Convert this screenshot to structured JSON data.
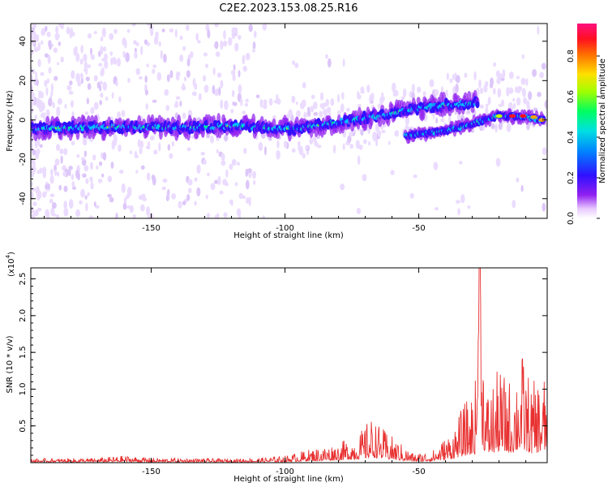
{
  "title": "C2E2.2023.153.08.25.R16",
  "chart_data": [
    {
      "type": "heatmap",
      "xlabel": "Height of straight line (km)",
      "ylabel": "Frequency (Hz)",
      "xlim": [
        -195,
        -2
      ],
      "ylim": [
        -50,
        49
      ],
      "xticks": [
        -150,
        -100,
        -50
      ],
      "yticks": [
        -40,
        -20,
        0,
        20,
        40
      ],
      "colorbar": {
        "label": "Normalized spectral amplitude",
        "range": [
          0.0,
          0.96
        ],
        "ticks": [
          "0.0",
          "0.2",
          "0.4",
          "0.6",
          "0.8"
        ]
      },
      "ridge": [
        {
          "x": -195,
          "y": -4.5
        },
        {
          "x": -180,
          "y": -4
        },
        {
          "x": -160,
          "y": -3.5
        },
        {
          "x": -140,
          "y": -4
        },
        {
          "x": -120,
          "y": -3
        },
        {
          "x": -105,
          "y": -4
        },
        {
          "x": -95,
          "y": -4.5
        },
        {
          "x": -85,
          "y": -2
        },
        {
          "x": -75,
          "y": 0
        },
        {
          "x": -65,
          "y": 2
        },
        {
          "x": -55,
          "y": 5
        },
        {
          "x": -45,
          "y": 7
        },
        {
          "x": -35,
          "y": 8
        },
        {
          "x": -28,
          "y": 9
        }
      ],
      "branch": [
        {
          "x": -55,
          "y": -8
        },
        {
          "x": -45,
          "y": -6.5
        },
        {
          "x": -35,
          "y": -4
        },
        {
          "x": -28,
          "y": -1
        },
        {
          "x": -20,
          "y": 2
        },
        {
          "x": -10,
          "y": 1.5
        },
        {
          "x": -3,
          "y": 0
        }
      ],
      "colors": [
        "#9020f0",
        "#3010ff",
        "#00c0ff",
        "#00ff80",
        "#c0ff00",
        "#ffa000",
        "#ff1020"
      ]
    },
    {
      "type": "line",
      "xlabel": "Height of straight line (km)",
      "ylabel": "SNR (10 * v/v)",
      "multiplier_label": "(x10",
      "multiplier_exp": "4",
      "multiplier_close": ")",
      "xlim": [
        -195,
        -2
      ],
      "ylim": [
        0,
        2.65
      ],
      "xticks": [
        -150,
        -100,
        -50
      ],
      "yticks": [
        0.5,
        1.0,
        1.5,
        2.0,
        2.5
      ],
      "ytick_labels": [
        "0.5",
        "1.0",
        "1.5",
        "2.0",
        "2.5"
      ],
      "color": "#e83030",
      "envelope": [
        {
          "x": -195,
          "y": 0.05
        },
        {
          "x": -170,
          "y": 0.06
        },
        {
          "x": -160,
          "y": 0.09
        },
        {
          "x": -150,
          "y": 0.06
        },
        {
          "x": -120,
          "y": 0.05
        },
        {
          "x": -110,
          "y": 0.06
        },
        {
          "x": -100,
          "y": 0.09
        },
        {
          "x": -90,
          "y": 0.18
        },
        {
          "x": -80,
          "y": 0.25
        },
        {
          "x": -72,
          "y": 0.38
        },
        {
          "x": -68,
          "y": 0.58
        },
        {
          "x": -64,
          "y": 0.45
        },
        {
          "x": -58,
          "y": 0.28
        },
        {
          "x": -52,
          "y": 0.12
        },
        {
          "x": -45,
          "y": 0.15
        },
        {
          "x": -38,
          "y": 0.4
        },
        {
          "x": -33,
          "y": 0.75
        },
        {
          "x": -29,
          "y": 0.95
        },
        {
          "x": -27,
          "y": 2.65
        },
        {
          "x": -25,
          "y": 0.9
        },
        {
          "x": -20,
          "y": 1.2
        },
        {
          "x": -15,
          "y": 1.05
        },
        {
          "x": -12,
          "y": 1.5
        },
        {
          "x": -8,
          "y": 1.0
        },
        {
          "x": -4,
          "y": 1.15
        },
        {
          "x": -2,
          "y": 1.15
        }
      ]
    }
  ]
}
